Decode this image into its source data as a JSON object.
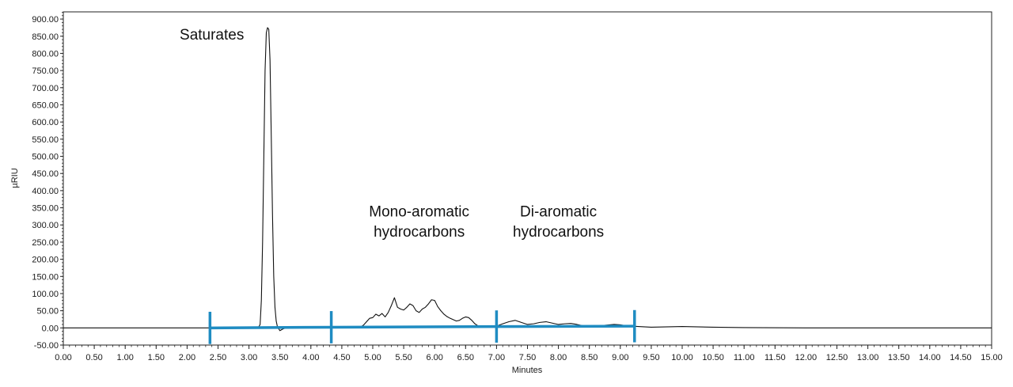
{
  "chart_data": {
    "type": "line",
    "xlabel": "Minutes",
    "ylabel": "µRIU",
    "xlim": [
      0,
      15
    ],
    "ylim": [
      -50,
      920
    ],
    "x_ticks": [
      "0.00",
      "0.50",
      "1.00",
      "1.50",
      "2.00",
      "2.50",
      "3.00",
      "3.50",
      "4.00",
      "4.50",
      "5.00",
      "5.50",
      "6.00",
      "6.50",
      "7.00",
      "7.50",
      "8.00",
      "8.50",
      "9.00",
      "9.50",
      "10.00",
      "10.50",
      "11.00",
      "11.50",
      "12.00",
      "12.50",
      "13.00",
      "13.50",
      "14.00",
      "14.50",
      "15.00"
    ],
    "y_ticks": [
      "-50.00",
      "0.00",
      "50.00",
      "100.00",
      "150.00",
      "200.00",
      "250.00",
      "300.00",
      "350.00",
      "400.00",
      "450.00",
      "500.00",
      "550.00",
      "600.00",
      "650.00",
      "700.00",
      "750.00",
      "800.00",
      "850.00",
      "900.00"
    ],
    "grid": false,
    "series": [
      {
        "x": [
          0.0,
          3.15,
          3.18,
          3.2,
          3.22,
          3.24,
          3.26,
          3.28,
          3.3,
          3.32,
          3.34,
          3.36,
          3.38,
          3.4,
          3.42,
          3.44,
          3.46,
          3.5,
          3.55,
          3.6,
          4.0,
          4.8,
          4.85,
          4.9,
          4.95,
          5.0,
          5.05,
          5.1,
          5.15,
          5.2,
          5.25,
          5.3,
          5.35,
          5.4,
          5.45,
          5.5,
          5.55,
          5.6,
          5.65,
          5.7,
          5.75,
          5.8,
          5.85,
          5.9,
          5.95,
          6.0,
          6.05,
          6.1,
          6.15,
          6.2,
          6.25,
          6.3,
          6.35,
          6.4,
          6.45,
          6.5,
          6.55,
          6.6,
          6.65,
          6.7,
          6.8,
          6.9,
          7.0,
          7.1,
          7.2,
          7.3,
          7.4,
          7.5,
          7.6,
          7.7,
          7.8,
          7.9,
          8.0,
          8.1,
          8.2,
          8.3,
          8.4,
          8.5,
          8.7,
          8.9,
          9.0,
          9.1,
          9.2,
          9.5,
          10.0,
          10.5,
          11.0,
          12.0,
          13.0,
          14.0,
          15.0
        ],
        "values": [
          0,
          0,
          10,
          80,
          250,
          500,
          750,
          860,
          875,
          870,
          780,
          560,
          330,
          150,
          60,
          20,
          3,
          -8,
          -3,
          0,
          0,
          2,
          8,
          18,
          28,
          30,
          40,
          35,
          42,
          32,
          45,
          65,
          88,
          60,
          55,
          52,
          60,
          70,
          65,
          50,
          45,
          55,
          60,
          70,
          82,
          80,
          62,
          50,
          40,
          33,
          28,
          24,
          20,
          22,
          28,
          32,
          30,
          22,
          12,
          6,
          3,
          2,
          5,
          12,
          18,
          22,
          16,
          10,
          12,
          16,
          18,
          14,
          10,
          12,
          13,
          10,
          6,
          4,
          7,
          10,
          9,
          6,
          5,
          2,
          4,
          2,
          1,
          0,
          0,
          0,
          0
        ]
      }
    ],
    "annotations": [
      {
        "text": "Saturates",
        "x": 2.4,
        "y": 840
      },
      {
        "text": "Mono-aromatic",
        "x": 5.75,
        "y": 325
      },
      {
        "text": "hydrocarbons",
        "x": 5.75,
        "y": 266
      },
      {
        "text": "Di-aromatic",
        "x": 8.0,
        "y": 325
      },
      {
        "text": "hydrocarbons",
        "x": 8.0,
        "y": 266
      }
    ],
    "fraction_markers": {
      "color": "#1f8cc2",
      "x": [
        2.37,
        4.33,
        7.0,
        9.23
      ],
      "y": [
        0,
        2,
        4,
        5
      ],
      "half_height": 47
    }
  }
}
